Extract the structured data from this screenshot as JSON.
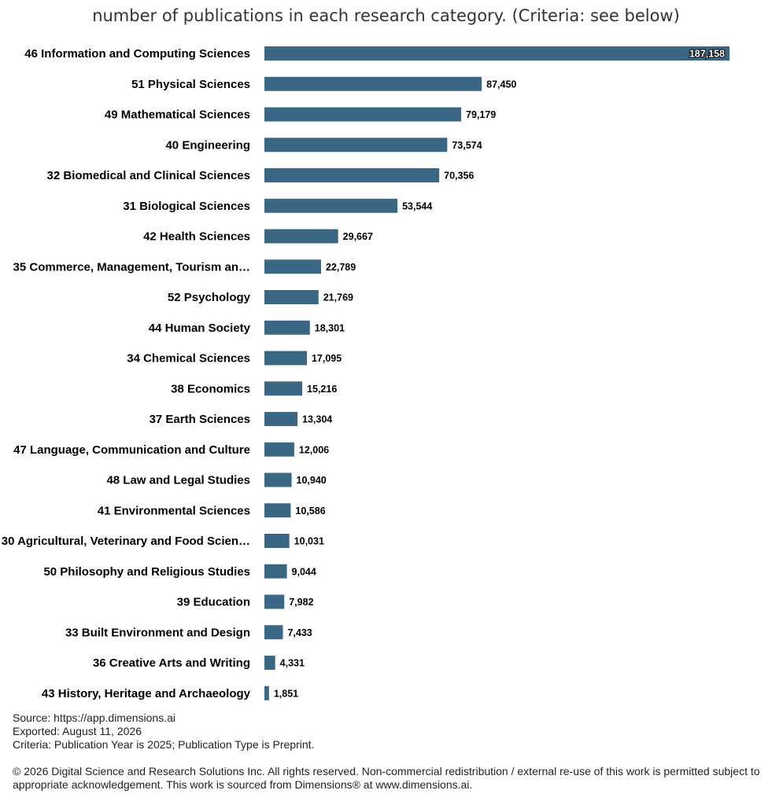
{
  "chart_data": {
    "type": "bar",
    "orientation": "horizontal",
    "title": "number of publications in each research category. (Criteria: see below)",
    "categories": [
      "46 Information and Computing Sciences",
      "51 Physical Sciences",
      "49 Mathematical Sciences",
      "40 Engineering",
      "32 Biomedical and Clinical Sciences",
      "31 Biological Sciences",
      "42 Health Sciences",
      "35 Commerce, Management, Tourism an…",
      "52 Psychology",
      "44 Human Society",
      "34 Chemical Sciences",
      "38 Economics",
      "37 Earth Sciences",
      "47 Language, Communication and Culture",
      "48 Law and Legal Studies",
      "41 Environmental Sciences",
      "30 Agricultural, Veterinary and Food Scien…",
      "50 Philosophy and Religious Studies",
      "39 Education",
      "33 Built Environment and Design",
      "36 Creative Arts and Writing",
      "43 History, Heritage and Archaeology"
    ],
    "values": [
      187158,
      87450,
      79179,
      73574,
      70356,
      53544,
      29667,
      22789,
      21769,
      18301,
      17095,
      15216,
      13304,
      12006,
      10940,
      10586,
      10031,
      9044,
      7982,
      7433,
      4331,
      1851
    ],
    "value_labels": [
      "187,158",
      "87,450",
      "79,179",
      "73,574",
      "70,356",
      "53,544",
      "29,667",
      "22,789",
      "21,769",
      "18,301",
      "17,095",
      "15,216",
      "13,304",
      "12,006",
      "10,940",
      "10,586",
      "10,031",
      "9,044",
      "7,982",
      "7,433",
      "4,331",
      "1,851"
    ],
    "bar_color": "#3a6784",
    "xlim": [
      0,
      187158
    ],
    "grid": false,
    "legend": "none"
  },
  "footer": {
    "source": "Source: https://app.dimensions.ai",
    "exported": "Exported: August 11, 2026",
    "criteria": "Criteria: Publication Year is 2025; Publication Type is Preprint.",
    "copyright": "© 2026 Digital Science and Research Solutions Inc. All rights reserved. Non-commercial redistribution / external re-use of this work is permitted subject to appropriate acknowledgement. This work is sourced from Dimensions® at www.dimensions.ai."
  }
}
